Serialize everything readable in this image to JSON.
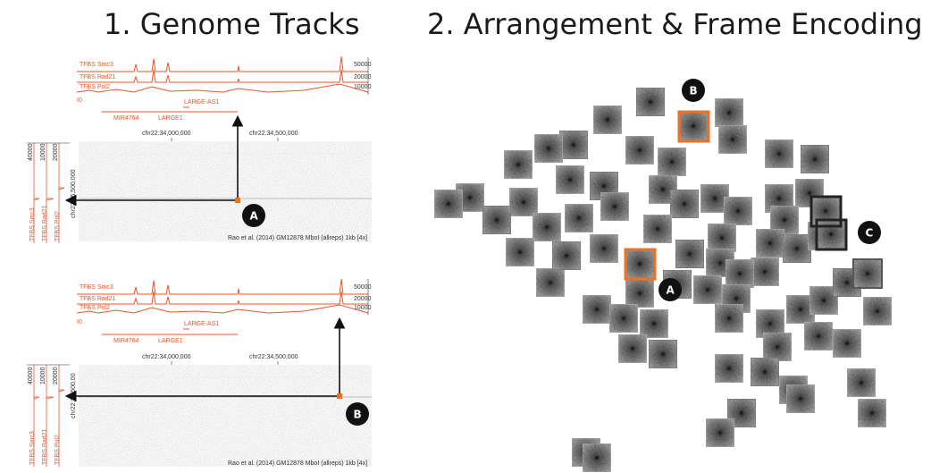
{
  "titles": {
    "panel1": "1. Genome Tracks",
    "panel2": "2. Arrangement & Frame Encoding"
  },
  "tracks": {
    "labels": [
      "TFBS Smc3",
      "TFBS Rad21",
      "TFBS Pol2"
    ],
    "scales": [
      "50000",
      "20000",
      "10000"
    ],
    "side_scales": [
      "40000",
      "10000",
      "20000"
    ],
    "gene_label_left": "MIR4764",
    "gene_label_mid": "LARGE1",
    "gene_label_right": "LARGE-AS1",
    "zero_label": "I0",
    "x_ticks": [
      "chr22:34,000,000",
      "chr22:34,500,000"
    ],
    "y_tick": "chr22:35,500,000",
    "y_tick_b": "chr22:35,500,00",
    "caption": "Rao et al. (2014) GM12878 MboI (allreps) 1kb [4x]"
  },
  "badges": {
    "a": "A",
    "b": "B",
    "c": "C"
  },
  "colors": {
    "track": "#e8562a",
    "highlight": "#f07020",
    "selected_frame": "#222222",
    "badge_bg": "#111111"
  }
}
